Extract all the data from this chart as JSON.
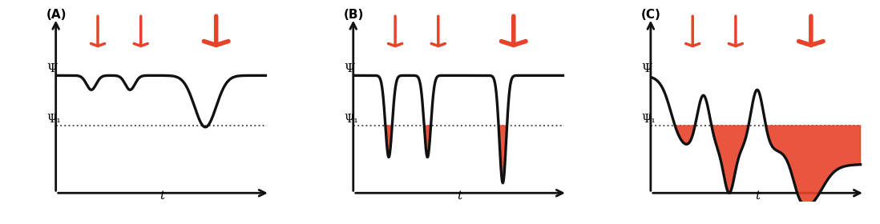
{
  "fig_width": 10.98,
  "fig_height": 2.8,
  "dpi": 100,
  "background_color": "#ffffff",
  "arrow_color": "#e8422a",
  "line_color": "#111111",
  "fill_color": "#e8422a",
  "dotted_color": "#555555",
  "psi_level": 0.7,
  "psi1_level": 0.35,
  "panels": [
    "(A)",
    "(B)",
    "(C)"
  ],
  "xlabel": "t",
  "ylabel_psi": "Ψ",
  "ylabel_psi1": "Ψ₁"
}
